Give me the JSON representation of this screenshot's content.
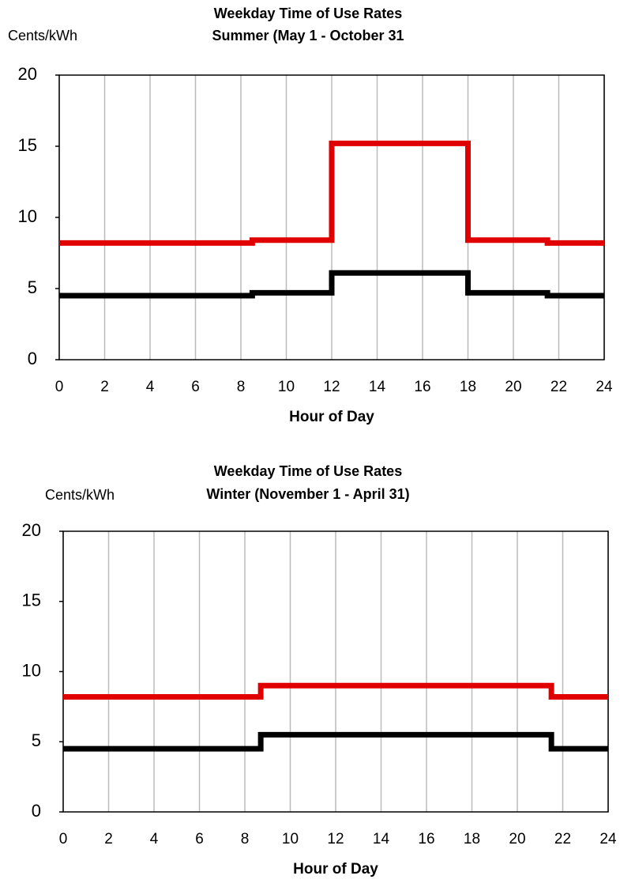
{
  "chart_data": [
    {
      "type": "line",
      "title": "Weekday Time of Use Rates",
      "subtitle": "Summer (May 1 - October 31",
      "y_label": "Cents/kWh",
      "x_label": "Hour of Day",
      "xlim": [
        0,
        24
      ],
      "xticks": [
        0,
        2,
        4,
        6,
        8,
        10,
        12,
        14,
        16,
        18,
        20,
        22,
        24
      ],
      "ylim": [
        0,
        20
      ],
      "yticks": [
        0,
        5,
        10,
        15,
        20
      ],
      "grid": "x",
      "series": [
        {
          "color": "#e00000",
          "x": [
            0,
            8.5,
            8.5,
            12,
            12,
            18,
            18,
            21.5,
            21.5,
            24
          ],
          "values": [
            8.2,
            8.2,
            8.4,
            8.4,
            15.2,
            15.2,
            8.4,
            8.4,
            8.2,
            8.2
          ]
        },
        {
          "color": "#000000",
          "x": [
            0,
            8.5,
            8.5,
            12,
            12,
            18,
            18,
            21.5,
            21.5,
            24
          ],
          "values": [
            4.5,
            4.5,
            4.7,
            4.7,
            6.1,
            6.1,
            4.7,
            4.7,
            4.5,
            4.5
          ]
        }
      ]
    },
    {
      "type": "line",
      "title": "Weekday Time of Use Rates",
      "subtitle": "Winter (November 1 - April 31)",
      "y_label": "Cents/kWh",
      "x_label": "Hour of Day",
      "xlim": [
        0,
        24
      ],
      "xticks": [
        0,
        2,
        4,
        6,
        8,
        10,
        12,
        14,
        16,
        18,
        20,
        22,
        24
      ],
      "ylim": [
        0,
        20
      ],
      "yticks": [
        0,
        5,
        10,
        15,
        20
      ],
      "grid": "x",
      "series": [
        {
          "color": "#e00000",
          "x": [
            0,
            8.7,
            8.7,
            21.5,
            21.5,
            24
          ],
          "values": [
            8.2,
            8.2,
            9.0,
            9.0,
            8.2,
            8.2
          ]
        },
        {
          "color": "#000000",
          "x": [
            0,
            8.7,
            8.7,
            21.5,
            21.5,
            24
          ],
          "values": [
            4.5,
            4.5,
            5.5,
            5.5,
            4.5,
            4.5
          ]
        }
      ]
    }
  ]
}
